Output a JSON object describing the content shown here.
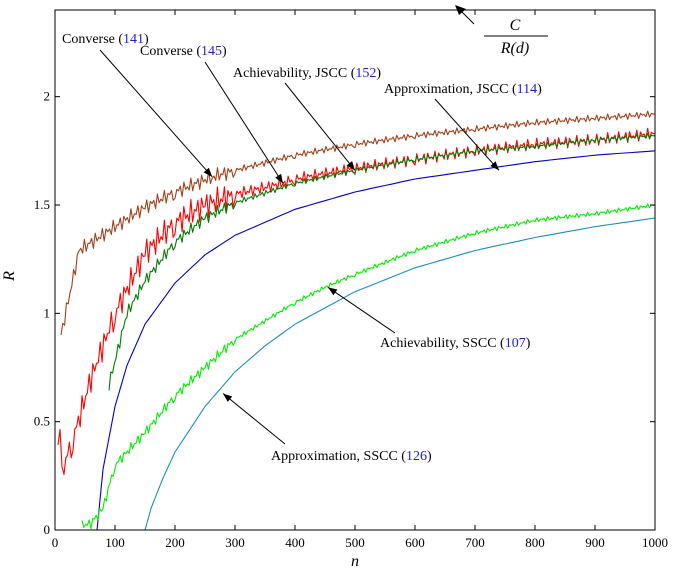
{
  "chart_data": {
    "type": "line",
    "xlabel": "n",
    "ylabel": "R",
    "xlim": [
      0,
      1000
    ],
    "ylim": [
      0,
      2.4
    ],
    "xticks": [
      0,
      100,
      200,
      300,
      400,
      500,
      600,
      700,
      800,
      900,
      1000
    ],
    "yticks": [
      0,
      0.5,
      1,
      1.5,
      2
    ],
    "xtick_labels": [
      "0",
      "100",
      "200",
      "300",
      "400",
      "500",
      "600",
      "700",
      "800",
      "900",
      "1000"
    ],
    "ytick_labels": [
      "0",
      "0.5",
      "1",
      "1.5",
      "2"
    ],
    "grid": false,
    "capacity_label": {
      "numerator": "C",
      "denominator": "R(d)"
    },
    "series": [
      {
        "key": "converse141",
        "color": "#a0401a",
        "x": [
          10,
          40,
          100,
          150,
          200,
          262,
          300,
          400,
          500,
          600,
          700,
          800,
          900,
          1000
        ],
        "y": [
          0.9,
          1.29,
          1.4,
          1.49,
          1.56,
          1.63,
          1.66,
          1.73,
          1.78,
          1.82,
          1.85,
          1.88,
          1.9,
          1.92
        ],
        "label": {
          "text": "Converse (",
          "ref": "141",
          "close": ")"
        }
      },
      {
        "key": "converse145",
        "color": "#ff0000",
        "x": [
          5,
          15,
          30,
          60,
          100,
          150,
          200,
          250,
          300,
          380,
          400,
          500,
          600,
          700,
          800,
          900,
          1000
        ],
        "y": [
          0.45,
          0.3,
          0.42,
          0.7,
          1.0,
          1.28,
          1.42,
          1.5,
          1.55,
          1.6,
          1.62,
          1.67,
          1.71,
          1.75,
          1.78,
          1.8,
          1.83
        ],
        "label": {
          "text": "Converse (",
          "ref": "145",
          "close": ")"
        }
      },
      {
        "key": "achieve152",
        "color": "#007a00",
        "x": [
          90,
          120,
          150,
          200,
          250,
          300,
          400,
          500,
          600,
          700,
          800,
          900,
          1000
        ],
        "y": [
          0.67,
          1.0,
          1.15,
          1.33,
          1.44,
          1.51,
          1.6,
          1.66,
          1.71,
          1.75,
          1.77,
          1.8,
          1.82
        ],
        "label": {
          "text": "Achievability, JSCC (",
          "ref": "152",
          "close": ")"
        }
      },
      {
        "key": "approx114",
        "color": "#0000cc",
        "x": [
          70,
          80,
          100,
          120,
          150,
          200,
          250,
          300,
          400,
          500,
          600,
          700,
          800,
          900,
          1000
        ],
        "y": [
          0.0,
          0.28,
          0.57,
          0.76,
          0.95,
          1.14,
          1.27,
          1.36,
          1.48,
          1.56,
          1.62,
          1.66,
          1.7,
          1.73,
          1.75
        ],
        "label": {
          "text": "Approximation, JSCC (",
          "ref": "114",
          "close": ")"
        }
      },
      {
        "key": "achieve107",
        "color": "#00ee00",
        "x": [
          42,
          60,
          80,
          100,
          150,
          200,
          250,
          300,
          400,
          450,
          500,
          600,
          700,
          800,
          900,
          1000
        ],
        "y": [
          0.02,
          0.03,
          0.1,
          0.3,
          0.45,
          0.62,
          0.75,
          0.88,
          1.05,
          1.12,
          1.18,
          1.29,
          1.37,
          1.43,
          1.46,
          1.5
        ],
        "label": {
          "text": "Achievability, SSCC (",
          "ref": "107",
          "close": ")"
        }
      },
      {
        "key": "approx126",
        "color": "#1a8fbf",
        "x": [
          150,
          160,
          180,
          200,
          250,
          300,
          350,
          400,
          500,
          600,
          700,
          800,
          900,
          1000
        ],
        "y": [
          0.0,
          0.1,
          0.24,
          0.36,
          0.57,
          0.73,
          0.85,
          0.95,
          1.1,
          1.21,
          1.29,
          1.35,
          1.4,
          1.44
        ],
        "label": {
          "text": "Approximation, SSCC (",
          "ref": "126",
          "close": ")"
        }
      }
    ]
  }
}
